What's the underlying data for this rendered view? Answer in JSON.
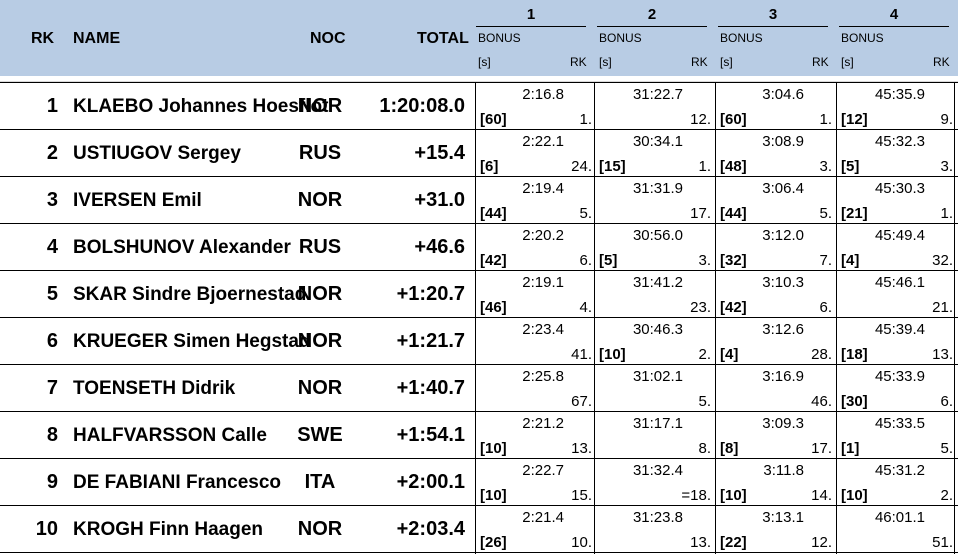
{
  "header": {
    "rk": "RK",
    "name": "NAME",
    "noc": "NOC",
    "total": "TOTAL",
    "intermediates": [
      {
        "number": "1",
        "bonus": "BONUS",
        "unit": "[s]",
        "rk": "RK"
      },
      {
        "number": "2",
        "bonus": "BONUS",
        "unit": "[s]",
        "rk": "RK"
      },
      {
        "number": "3",
        "bonus": "BONUS",
        "unit": "[s]",
        "rk": "RK"
      },
      {
        "number": "4",
        "bonus": "BONUS",
        "unit": "[s]",
        "rk": "RK"
      }
    ]
  },
  "rows": [
    {
      "rk": "1",
      "name": "KLAEBO Johannes Hoesflot",
      "noc": "NOR",
      "total": "1:20:08.0",
      "splits": [
        {
          "time": "2:16.8",
          "bonus": "[60]",
          "rk": "1."
        },
        {
          "time": "31:22.7",
          "bonus": "",
          "rk": "12."
        },
        {
          "time": "3:04.6",
          "bonus": "[60]",
          "rk": "1."
        },
        {
          "time": "45:35.9",
          "bonus": "[12]",
          "rk": "9."
        }
      ]
    },
    {
      "rk": "2",
      "name": "USTIUGOV Sergey",
      "noc": "RUS",
      "total": "+15.4",
      "splits": [
        {
          "time": "2:22.1",
          "bonus": "[6]",
          "rk": "24."
        },
        {
          "time": "30:34.1",
          "bonus": "[15]",
          "rk": "1."
        },
        {
          "time": "3:08.9",
          "bonus": "[48]",
          "rk": "3."
        },
        {
          "time": "45:32.3",
          "bonus": "[5]",
          "rk": "3."
        }
      ]
    },
    {
      "rk": "3",
      "name": "IVERSEN Emil",
      "noc": "NOR",
      "total": "+31.0",
      "splits": [
        {
          "time": "2:19.4",
          "bonus": "[44]",
          "rk": "5."
        },
        {
          "time": "31:31.9",
          "bonus": "",
          "rk": "17."
        },
        {
          "time": "3:06.4",
          "bonus": "[44]",
          "rk": "5."
        },
        {
          "time": "45:30.3",
          "bonus": "[21]",
          "rk": "1."
        }
      ]
    },
    {
      "rk": "4",
      "name": "BOLSHUNOV Alexander",
      "noc": "RUS",
      "total": "+46.6",
      "splits": [
        {
          "time": "2:20.2",
          "bonus": "[42]",
          "rk": "6."
        },
        {
          "time": "30:56.0",
          "bonus": "[5]",
          "rk": "3."
        },
        {
          "time": "3:12.0",
          "bonus": "[32]",
          "rk": "7."
        },
        {
          "time": "45:49.4",
          "bonus": "[4]",
          "rk": "32."
        }
      ]
    },
    {
      "rk": "5",
      "name": "SKAR Sindre Bjoernestad",
      "noc": "NOR",
      "total": "+1:20.7",
      "splits": [
        {
          "time": "2:19.1",
          "bonus": "[46]",
          "rk": "4."
        },
        {
          "time": "31:41.2",
          "bonus": "",
          "rk": "23."
        },
        {
          "time": "3:10.3",
          "bonus": "[42]",
          "rk": "6."
        },
        {
          "time": "45:46.1",
          "bonus": "",
          "rk": "21."
        }
      ]
    },
    {
      "rk": "6",
      "name": "KRUEGER Simen Hegstad",
      "noc": "NOR",
      "total": "+1:21.7",
      "splits": [
        {
          "time": "2:23.4",
          "bonus": "",
          "rk": "41."
        },
        {
          "time": "30:46.3",
          "bonus": "[10]",
          "rk": "2."
        },
        {
          "time": "3:12.6",
          "bonus": "[4]",
          "rk": "28."
        },
        {
          "time": "45:39.4",
          "bonus": "[18]",
          "rk": "13."
        }
      ]
    },
    {
      "rk": "7",
      "name": "TOENSETH Didrik",
      "noc": "NOR",
      "total": "+1:40.7",
      "splits": [
        {
          "time": "2:25.8",
          "bonus": "",
          "rk": "67."
        },
        {
          "time": "31:02.1",
          "bonus": "",
          "rk": "5."
        },
        {
          "time": "3:16.9",
          "bonus": "",
          "rk": "46."
        },
        {
          "time": "45:33.9",
          "bonus": "[30]",
          "rk": "6."
        }
      ]
    },
    {
      "rk": "8",
      "name": "HALFVARSSON Calle",
      "noc": "SWE",
      "total": "+1:54.1",
      "splits": [
        {
          "time": "2:21.2",
          "bonus": "[10]",
          "rk": "13."
        },
        {
          "time": "31:17.1",
          "bonus": "",
          "rk": "8."
        },
        {
          "time": "3:09.3",
          "bonus": "[8]",
          "rk": "17."
        },
        {
          "time": "45:33.5",
          "bonus": "[1]",
          "rk": "5."
        }
      ]
    },
    {
      "rk": "9",
      "name": "DE FABIANI Francesco",
      "noc": "ITA",
      "total": "+2:00.1",
      "splits": [
        {
          "time": "2:22.7",
          "bonus": "[10]",
          "rk": "15."
        },
        {
          "time": "31:32.4",
          "bonus": "",
          "rk": "=18."
        },
        {
          "time": "3:11.8",
          "bonus": "[10]",
          "rk": "14."
        },
        {
          "time": "45:31.2",
          "bonus": "[10]",
          "rk": "2."
        }
      ]
    },
    {
      "rk": "10",
      "name": "KROGH Finn Haagen",
      "noc": "NOR",
      "total": "+2:03.4",
      "splits": [
        {
          "time": "2:21.4",
          "bonus": "[26]",
          "rk": "10."
        },
        {
          "time": "31:23.8",
          "bonus": "",
          "rk": "13."
        },
        {
          "time": "3:13.1",
          "bonus": "[22]",
          "rk": "12."
        },
        {
          "time": "46:01.1",
          "bonus": "",
          "rk": "51."
        }
      ]
    }
  ]
}
